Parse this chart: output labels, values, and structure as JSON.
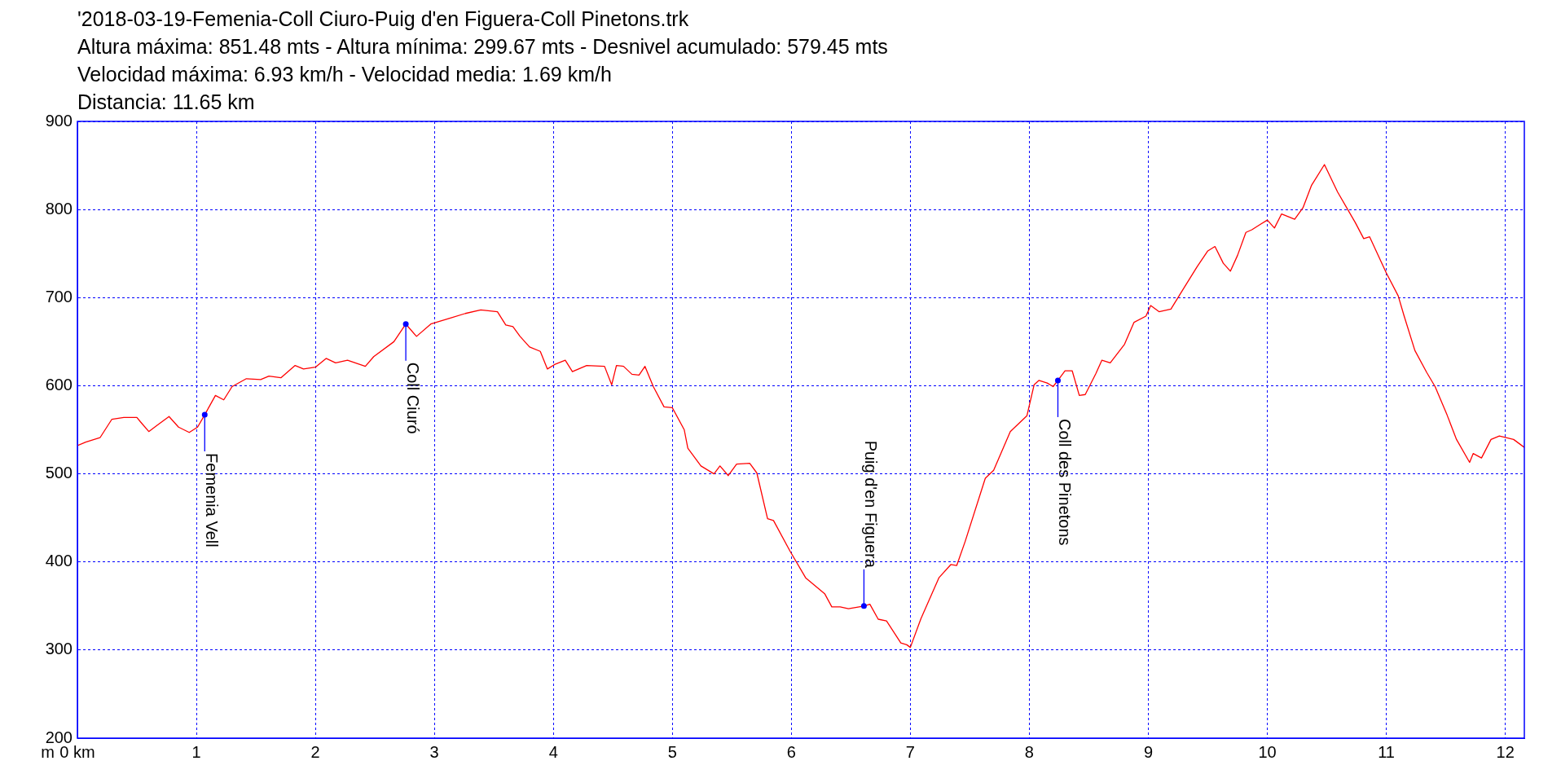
{
  "chart_data": {
    "type": "line",
    "title": "'2018-03-19-Femenia-Coll Ciuro-Puig d'en Figuera-Coll Pinetons.trk",
    "ylabel": "m",
    "annotations": [
      "Altura máxima: 851.48 mts - Altura mínima: 299.67 mts - Desnivel acumulado: 579.45 mts",
      "Velocidad máxima: 6.93 km/h - Velocidad media: 1.69 km/h",
      "Distancia: 11.65 km",
      {
        "text": "Femenia Vell",
        "x": 1.07,
        "y": 567
      },
      {
        "text": "Coll Ciuró",
        "x": 2.76,
        "y": 670
      },
      {
        "text": "Puig d'en Figuera",
        "x": 6.61,
        "y": 350
      },
      {
        "text": "Coll des Pinetons",
        "x": 8.24,
        "y": 606
      }
    ],
    "series": [
      {
        "color": "#ff0000",
        "x": [
          0,
          0.07,
          0.19,
          0.29,
          0.39,
          0.5,
          0.53,
          0.6,
          0.67,
          0.77,
          0.85,
          0.94,
          1.01,
          1.07,
          1.16,
          1.23,
          1.3,
          1.42,
          1.54,
          1.61,
          1.71,
          1.83,
          1.9,
          2.0,
          2.09,
          2.17,
          2.27,
          2.42,
          2.49,
          2.66,
          2.76,
          2.85,
          2.97,
          3.14,
          3.26,
          3.39,
          3.53,
          3.6,
          3.66,
          3.72,
          3.8,
          3.89,
          3.95,
          4.01,
          4.1,
          4.16,
          4.28,
          4.43,
          4.49,
          4.53,
          4.59,
          4.66,
          4.72,
          4.77,
          4.84,
          4.93,
          5.0,
          5.1,
          5.13,
          5.24,
          5.35,
          5.4,
          5.47,
          5.54,
          5.65,
          5.71,
          5.8,
          5.85,
          5.99,
          6.12,
          6.28,
          6.34,
          6.41,
          6.48,
          6.61,
          6.66,
          6.73,
          6.8,
          6.92,
          6.97,
          7.0,
          7.09,
          7.24,
          7.34,
          7.39,
          7.46,
          7.63,
          7.7,
          7.84,
          7.98,
          8.04,
          8.08,
          8.15,
          8.2,
          8.24,
          8.3,
          8.36,
          8.42,
          8.47,
          8.56,
          8.61,
          8.68,
          8.8,
          8.88,
          8.98,
          9.02,
          9.09,
          9.19,
          9.29,
          9.41,
          9.5,
          9.56,
          9.63,
          9.69,
          9.75,
          9.82,
          9.87,
          9.94,
          10.0,
          10.06,
          10.12,
          10.23,
          10.3,
          10.37,
          10.48,
          10.59,
          10.74,
          10.81,
          10.86,
          11.0,
          11.1,
          11.15,
          11.24,
          11.34,
          11.41,
          11.51,
          11.59,
          11.7,
          11.73,
          11.8,
          11.88,
          11.95,
          12.07,
          12.16
        ],
        "values": [
          532,
          536,
          541,
          562,
          564,
          564,
          559,
          548,
          555,
          565,
          553,
          547,
          553,
          567,
          589,
          584,
          599,
          608,
          607,
          611,
          609,
          623,
          619,
          621,
          631,
          626,
          629,
          622,
          633,
          650,
          670,
          656,
          670,
          677,
          682,
          686,
          684,
          669,
          667,
          656,
          644,
          639,
          619,
          624,
          629,
          616,
          623,
          622,
          601,
          623,
          622,
          613,
          612,
          622,
          599,
          576,
          575,
          550,
          529,
          509,
          500,
          509,
          498,
          511,
          512,
          501,
          449,
          447,
          412,
          382,
          364,
          349,
          349,
          347,
          350,
          352,
          335,
          333,
          308,
          306,
          303,
          336,
          382,
          397,
          396,
          423,
          495,
          504,
          548,
          566,
          601,
          606,
          603,
          599,
          606,
          617,
          617,
          589,
          590,
          614,
          629,
          626,
          647,
          672,
          679,
          691,
          684,
          687,
          709,
          735,
          753,
          758,
          739,
          730,
          748,
          774,
          777,
          783,
          788,
          779,
          795,
          789,
          802,
          827,
          851,
          820,
          785,
          767,
          769,
          728,
          702,
          679,
          640,
          615,
          599,
          567,
          539,
          513,
          523,
          518,
          539,
          543,
          539,
          530
        ]
      }
    ],
    "xlim": [
      0,
      12.16
    ],
    "xticks": [
      {
        "value": 0,
        "label": "0 km"
      },
      1,
      2,
      3,
      4,
      5,
      6,
      7,
      8,
      9,
      10,
      11,
      12
    ],
    "ylim": [
      200,
      900
    ],
    "yticks": [
      200,
      300,
      400,
      500,
      600,
      700,
      800,
      900
    ],
    "grid": true,
    "legend": false,
    "marker": "none",
    "line_style": "solid"
  }
}
